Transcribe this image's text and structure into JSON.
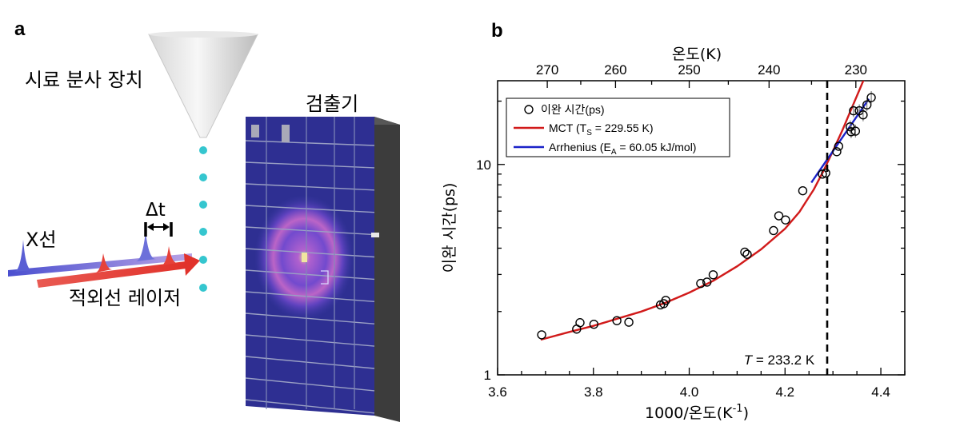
{
  "panel_a": {
    "label": "a",
    "sample_injector_label": "시료 분사 장치",
    "detector_label": "검출기",
    "xray_label": "X선",
    "delay_label": "Δt",
    "laser_label": "적외선 레이저"
  },
  "panel_b": {
    "label": "b",
    "temperature_marker": {
      "prefix": "T",
      "text": " = 233.2 K",
      "x_value": 4.288
    }
  },
  "colors": {
    "xray": "#5f63d8",
    "laser": "#e3473f",
    "droplet": "#35c6cf",
    "mct_line": "#d11a1a",
    "arrhenius_line": "#1a22c8",
    "detector_panel": "#2e2f92"
  },
  "chart_data": {
    "type": "scatter",
    "title": "",
    "xlabel": "1000/온도(K",
    "xlabel_sup": "-1",
    "xlabel_suffix": ")",
    "ylabel": "이완 시간(ps)",
    "top_xlabel": "온도(K)",
    "xlim": [
      3.6,
      4.45
    ],
    "ylim": [
      1,
      25
    ],
    "yscale": "log",
    "x_ticks": [
      "3.6",
      "3.8",
      "4.0",
      "4.2",
      "4.4"
    ],
    "y_ticks": [
      "1",
      "10"
    ],
    "top_ticks": [
      "270",
      "260",
      "250",
      "240",
      "230"
    ],
    "legend_position": "top-left",
    "series": [
      {
        "name": "이완 시간(ps)",
        "kind": "points",
        "x": [
          3.692,
          3.765,
          3.772,
          3.801,
          3.849,
          3.874,
          3.94,
          3.947,
          3.951,
          4.024,
          4.037,
          4.05,
          4.116,
          4.121,
          4.176,
          4.187,
          4.201,
          4.237,
          4.278,
          4.285,
          4.308,
          4.312,
          4.336,
          4.338,
          4.343,
          4.347,
          4.355,
          4.363,
          4.371,
          4.38
        ],
        "y": [
          1.55,
          1.65,
          1.77,
          1.74,
          1.81,
          1.78,
          2.15,
          2.18,
          2.26,
          2.72,
          2.76,
          2.99,
          3.83,
          3.74,
          4.85,
          5.7,
          5.45,
          7.5,
          9.0,
          9.1,
          11.5,
          12.2,
          15.1,
          14.3,
          18.0,
          14.4,
          18.0,
          17.2,
          19.2,
          20.8
        ]
      },
      {
        "name": "MCT (T",
        "name_sub": "S",
        "name_suffix": " = 229.55 K)",
        "kind": "line",
        "x": [
          3.69,
          3.75,
          3.8,
          3.85,
          3.9,
          3.95,
          4.0,
          4.05,
          4.1,
          4.15,
          4.2,
          4.23,
          4.26,
          4.28,
          4.3,
          4.32,
          4.34,
          4.355,
          4.365,
          4.375
        ],
        "y": [
          1.47,
          1.6,
          1.71,
          1.85,
          2.0,
          2.2,
          2.46,
          2.8,
          3.28,
          3.95,
          4.95,
          5.95,
          7.6,
          9.3,
          11.6,
          14.6,
          18.7,
          22.5,
          25.5,
          29.0
        ]
      },
      {
        "name": "Arrhenius (E",
        "name_sub": "A",
        "name_suffix": " = 60.05 kJ/mol)",
        "kind": "line",
        "x": [
          4.255,
          4.375
        ],
        "y": [
          8.2,
          20.5
        ]
      }
    ]
  }
}
